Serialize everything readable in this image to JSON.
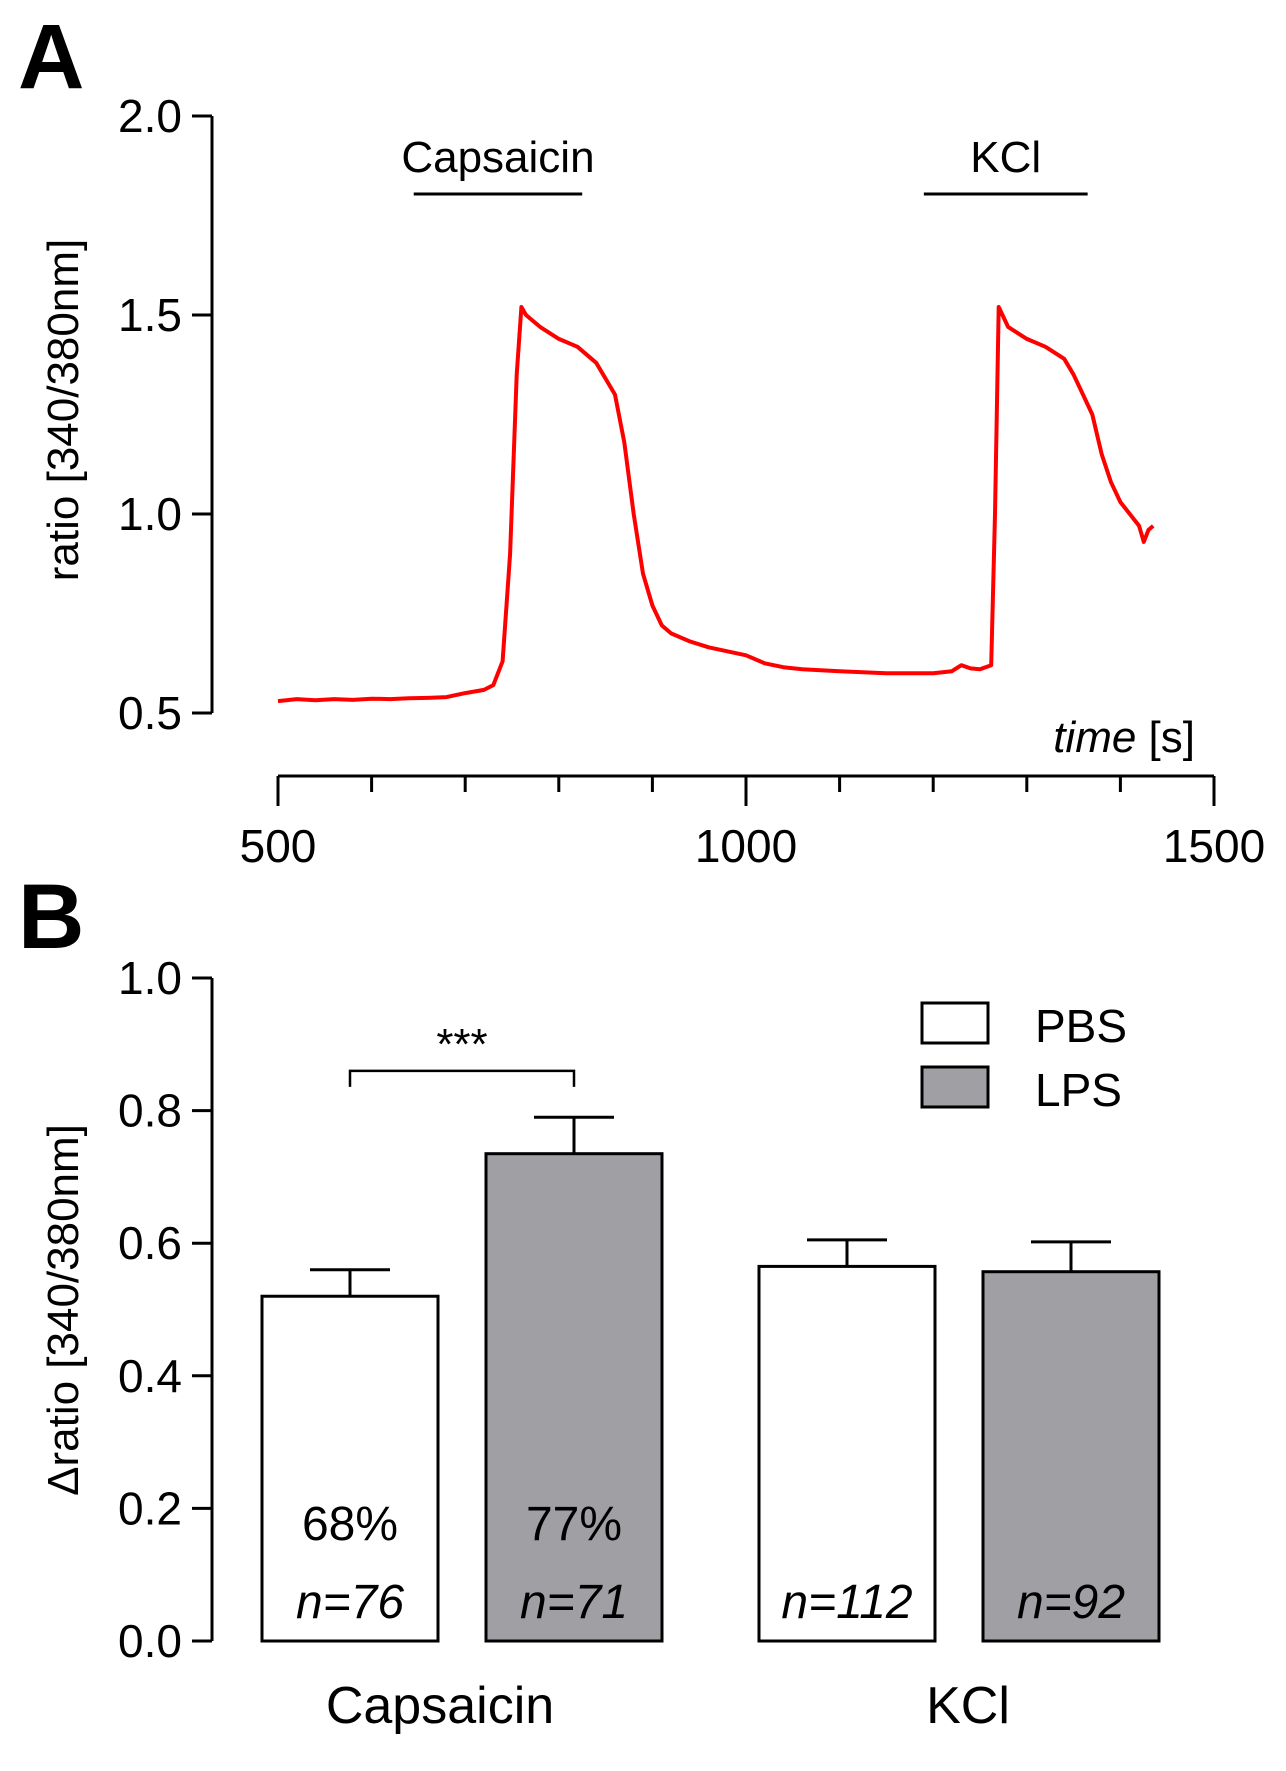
{
  "panels": {
    "a_label": "A",
    "b_label": "B"
  },
  "colors": {
    "trace": "#ff0000",
    "pbs_fill": "#ffffff",
    "lps_fill": "#a0a0a4",
    "axis": "#000000"
  },
  "chart_data": [
    {
      "type": "line",
      "panel": "A",
      "xlabel_italic": "time",
      "xlabel_unit": "[s]",
      "ylabel": "ratio [340/380nm]",
      "xlim": [
        500,
        1500
      ],
      "ylim": [
        0.5,
        2.0
      ],
      "x_ticks": [
        "500",
        "1000",
        "1500"
      ],
      "y_ticks": [
        "0.5",
        "1.0",
        "1.5",
        "2.0"
      ],
      "annotations": [
        {
          "label": "Capsaicin",
          "start": 645,
          "end": 825
        },
        {
          "label": "KCl",
          "start": 1190,
          "end": 1365
        }
      ],
      "series": [
        {
          "x": [
            500,
            520,
            540,
            560,
            580,
            600,
            620,
            640,
            660,
            680,
            700,
            720,
            730,
            740,
            748,
            755,
            760,
            765,
            770,
            780,
            800,
            820,
            840,
            860,
            870,
            880,
            890,
            900,
            910,
            920,
            940,
            960,
            1000,
            1020,
            1040,
            1060,
            1100,
            1150,
            1200,
            1220,
            1230,
            1240,
            1250,
            1262,
            1266,
            1270,
            1280,
            1300,
            1320,
            1340,
            1350,
            1360,
            1370,
            1380,
            1390,
            1400,
            1410,
            1420,
            1425,
            1430,
            1435
          ],
          "y": [
            0.53,
            0.535,
            0.532,
            0.535,
            0.533,
            0.536,
            0.535,
            0.537,
            0.538,
            0.54,
            0.55,
            0.558,
            0.57,
            0.63,
            0.9,
            1.35,
            1.52,
            1.5,
            1.49,
            1.47,
            1.44,
            1.42,
            1.38,
            1.3,
            1.18,
            1.0,
            0.85,
            0.77,
            0.72,
            0.7,
            0.68,
            0.665,
            0.645,
            0.625,
            0.615,
            0.61,
            0.605,
            0.6,
            0.6,
            0.605,
            0.62,
            0.612,
            0.61,
            0.62,
            1.0,
            1.52,
            1.47,
            1.44,
            1.42,
            1.39,
            1.35,
            1.3,
            1.25,
            1.15,
            1.08,
            1.03,
            1.0,
            0.97,
            0.93,
            0.96,
            0.97
          ]
        }
      ]
    },
    {
      "type": "bar",
      "panel": "B",
      "ylabel": "Δratio [340/380nm]",
      "ylim": [
        0.0,
        1.0
      ],
      "y_ticks": [
        "0.0",
        "0.2",
        "0.4",
        "0.6",
        "0.8",
        "1.0"
      ],
      "categories": [
        "Capsaicin",
        "KCl"
      ],
      "legend_position": "top-right",
      "series": [
        {
          "name": "PBS",
          "values": [
            0.52,
            0.565
          ],
          "errors": [
            0.04,
            0.04
          ],
          "percent": [
            "68%",
            ""
          ],
          "n": [
            "n=76",
            "n=112"
          ]
        },
        {
          "name": "LPS",
          "values": [
            0.735,
            0.557
          ],
          "errors": [
            0.055,
            0.045
          ],
          "percent": [
            "77%",
            ""
          ],
          "n": [
            "n=71",
            "n=92"
          ]
        }
      ],
      "significance": {
        "label": "***",
        "between": [
          "PBS",
          "LPS"
        ],
        "category": "Capsaicin"
      }
    }
  ]
}
